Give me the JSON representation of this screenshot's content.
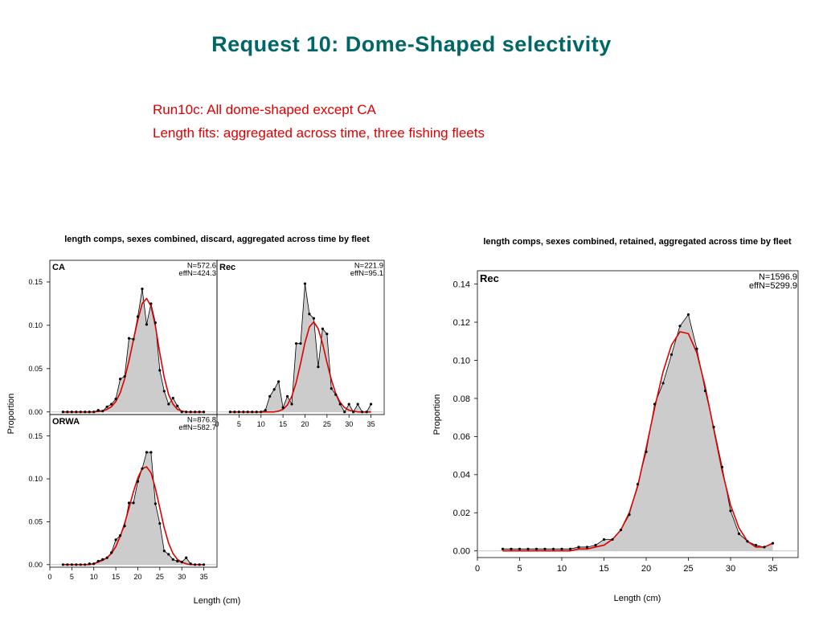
{
  "slide": {
    "title": "Request 10: Dome-Shaped selectivity",
    "subtitle_line1": "Run10c: All dome-shaped except CA",
    "subtitle_line2": "Length fits: aggregated across time, three fishing fleets"
  },
  "colors": {
    "title": "#006666",
    "subtitle": "#e00000",
    "fill": "#cccccc",
    "observed": "#000000",
    "expected": "#e00000"
  },
  "chart_data": [
    {
      "type": "area",
      "title": "length comps, sexes combined, discard, aggregated across time by fleet",
      "xlabel": "Length (cm)",
      "ylabel": "Proportion",
      "xlim": [
        0,
        38
      ],
      "ylim": [
        -0.003,
        0.175
      ],
      "xticks": [
        "0",
        "5",
        "10",
        "15",
        "20",
        "25",
        "30",
        "35"
      ],
      "yticks": [
        "0.00",
        "0.05",
        "0.10",
        "0.15"
      ],
      "panels": [
        {
          "name": "CA",
          "N": "N=572.6",
          "effN": "effN=424.3",
          "x": [
            3,
            4,
            5,
            6,
            7,
            8,
            9,
            10,
            11,
            12,
            13,
            14,
            15,
            16,
            17,
            18,
            19,
            20,
            21,
            22,
            23,
            24,
            25,
            26,
            27,
            28,
            29,
            30,
            31,
            32,
            33,
            34,
            35
          ],
          "observed": [
            0,
            0,
            0,
            0,
            0,
            0,
            0,
            0,
            0.002,
            0.001,
            0.006,
            0.009,
            0.015,
            0.038,
            0.041,
            0.085,
            0.084,
            0.11,
            0.142,
            0.101,
            0.125,
            0.103,
            0.048,
            0.024,
            0.009,
            0.016,
            0.007,
            0,
            0,
            0,
            0,
            0,
            0
          ],
          "expected": [
            0,
            0,
            0,
            0,
            0,
            0,
            0,
            0,
            0.0005,
            0.001,
            0.003,
            0.006,
            0.012,
            0.022,
            0.038,
            0.059,
            0.083,
            0.106,
            0.125,
            0.131,
            0.122,
            0.099,
            0.068,
            0.04,
            0.02,
            0.009,
            0.003,
            0.001,
            0,
            0,
            0,
            0,
            0
          ]
        },
        {
          "name": "Rec",
          "N": "N=221.9",
          "effN": "effN=95.1",
          "x": [
            3,
            4,
            5,
            6,
            7,
            8,
            9,
            10,
            11,
            12,
            13,
            14,
            15,
            16,
            17,
            18,
            19,
            20,
            21,
            22,
            23,
            24,
            25,
            26,
            27,
            28,
            29,
            30,
            31,
            32,
            33,
            34,
            35
          ],
          "observed": [
            0,
            0,
            0,
            0,
            0,
            0,
            0,
            0,
            0.002,
            0.018,
            0.026,
            0.035,
            0.005,
            0.018,
            0.009,
            0.079,
            0.079,
            0.148,
            0.113,
            0.108,
            0.052,
            0.096,
            0.09,
            0.027,
            0.02,
            0.009,
            0,
            0.009,
            0,
            0.009,
            0,
            0,
            0.009
          ],
          "expected": [
            0,
            0,
            0,
            0,
            0,
            0,
            0,
            0,
            0,
            0,
            0,
            0.001,
            0.003,
            0.008,
            0.018,
            0.034,
            0.056,
            0.08,
            0.098,
            0.104,
            0.096,
            0.079,
            0.057,
            0.037,
            0.021,
            0.011,
            0.005,
            0.002,
            0.001,
            0,
            0,
            0,
            0
          ]
        },
        {
          "name": "ORWA",
          "N": "N=876.8",
          "effN": "effN=582.7",
          "x": [
            3,
            4,
            5,
            6,
            7,
            8,
            9,
            10,
            11,
            12,
            13,
            14,
            15,
            16,
            17,
            18,
            19,
            20,
            21,
            22,
            23,
            24,
            25,
            26,
            27,
            28,
            29,
            30,
            31,
            32,
            33,
            34,
            35
          ],
          "observed": [
            0,
            0,
            0,
            0,
            0,
            0,
            0.001,
            0.001,
            0.004,
            0.006,
            0.008,
            0.014,
            0.029,
            0.034,
            0.045,
            0.072,
            0.072,
            0.097,
            0.112,
            0.131,
            0.131,
            0.071,
            0.048,
            0.016,
            0.012,
            0.006,
            0.004,
            0.003,
            0.008,
            0.001,
            0,
            0,
            0
          ],
          "expected": [
            0,
            0,
            0,
            0,
            0,
            0,
            0,
            0.001,
            0.003,
            0.005,
            0.008,
            0.013,
            0.021,
            0.033,
            0.048,
            0.066,
            0.085,
            0.101,
            0.112,
            0.114,
            0.107,
            0.089,
            0.066,
            0.043,
            0.025,
            0.013,
            0.006,
            0.003,
            0.001,
            0,
            0,
            0,
            0
          ]
        }
      ]
    },
    {
      "type": "area",
      "title": "length comps, sexes combined, retained, aggregated across time by fleet",
      "xlabel": "Length (cm)",
      "ylabel": "Proportion",
      "xlim": [
        0,
        38
      ],
      "ylim": [
        -0.0035,
        0.147
      ],
      "xticks": [
        "0",
        "5",
        "10",
        "15",
        "20",
        "25",
        "30",
        "35"
      ],
      "yticks": [
        "0.00",
        "0.02",
        "0.04",
        "0.06",
        "0.08",
        "0.10",
        "0.12",
        "0.14"
      ],
      "panels": [
        {
          "name": "Rec",
          "N": "N=1596.9",
          "effN": "effN=5299.9",
          "x": [
            3,
            4,
            5,
            6,
            7,
            8,
            9,
            10,
            11,
            12,
            13,
            14,
            15,
            16,
            17,
            18,
            19,
            20,
            21,
            22,
            23,
            24,
            25,
            26,
            27,
            28,
            29,
            30,
            31,
            32,
            33,
            34,
            35
          ],
          "observed": [
            0.001,
            0.001,
            0.001,
            0.001,
            0.001,
            0.001,
            0.001,
            0.001,
            0.001,
            0.002,
            0.002,
            0.003,
            0.006,
            0.006,
            0.011,
            0.019,
            0.035,
            0.052,
            0.077,
            0.088,
            0.103,
            0.118,
            0.124,
            0.106,
            0.084,
            0.065,
            0.044,
            0.021,
            0.009,
            0.005,
            0.003,
            0.002,
            0.004
          ],
          "expected": [
            0,
            0,
            0,
            0,
            0,
            0,
            0,
            0,
            0,
            0.001,
            0.001,
            0.002,
            0.003,
            0.006,
            0.011,
            0.02,
            0.034,
            0.054,
            0.075,
            0.094,
            0.108,
            0.115,
            0.114,
            0.104,
            0.086,
            0.064,
            0.042,
            0.024,
            0.012,
            0.005,
            0.002,
            0.002,
            0.004
          ]
        }
      ]
    }
  ]
}
